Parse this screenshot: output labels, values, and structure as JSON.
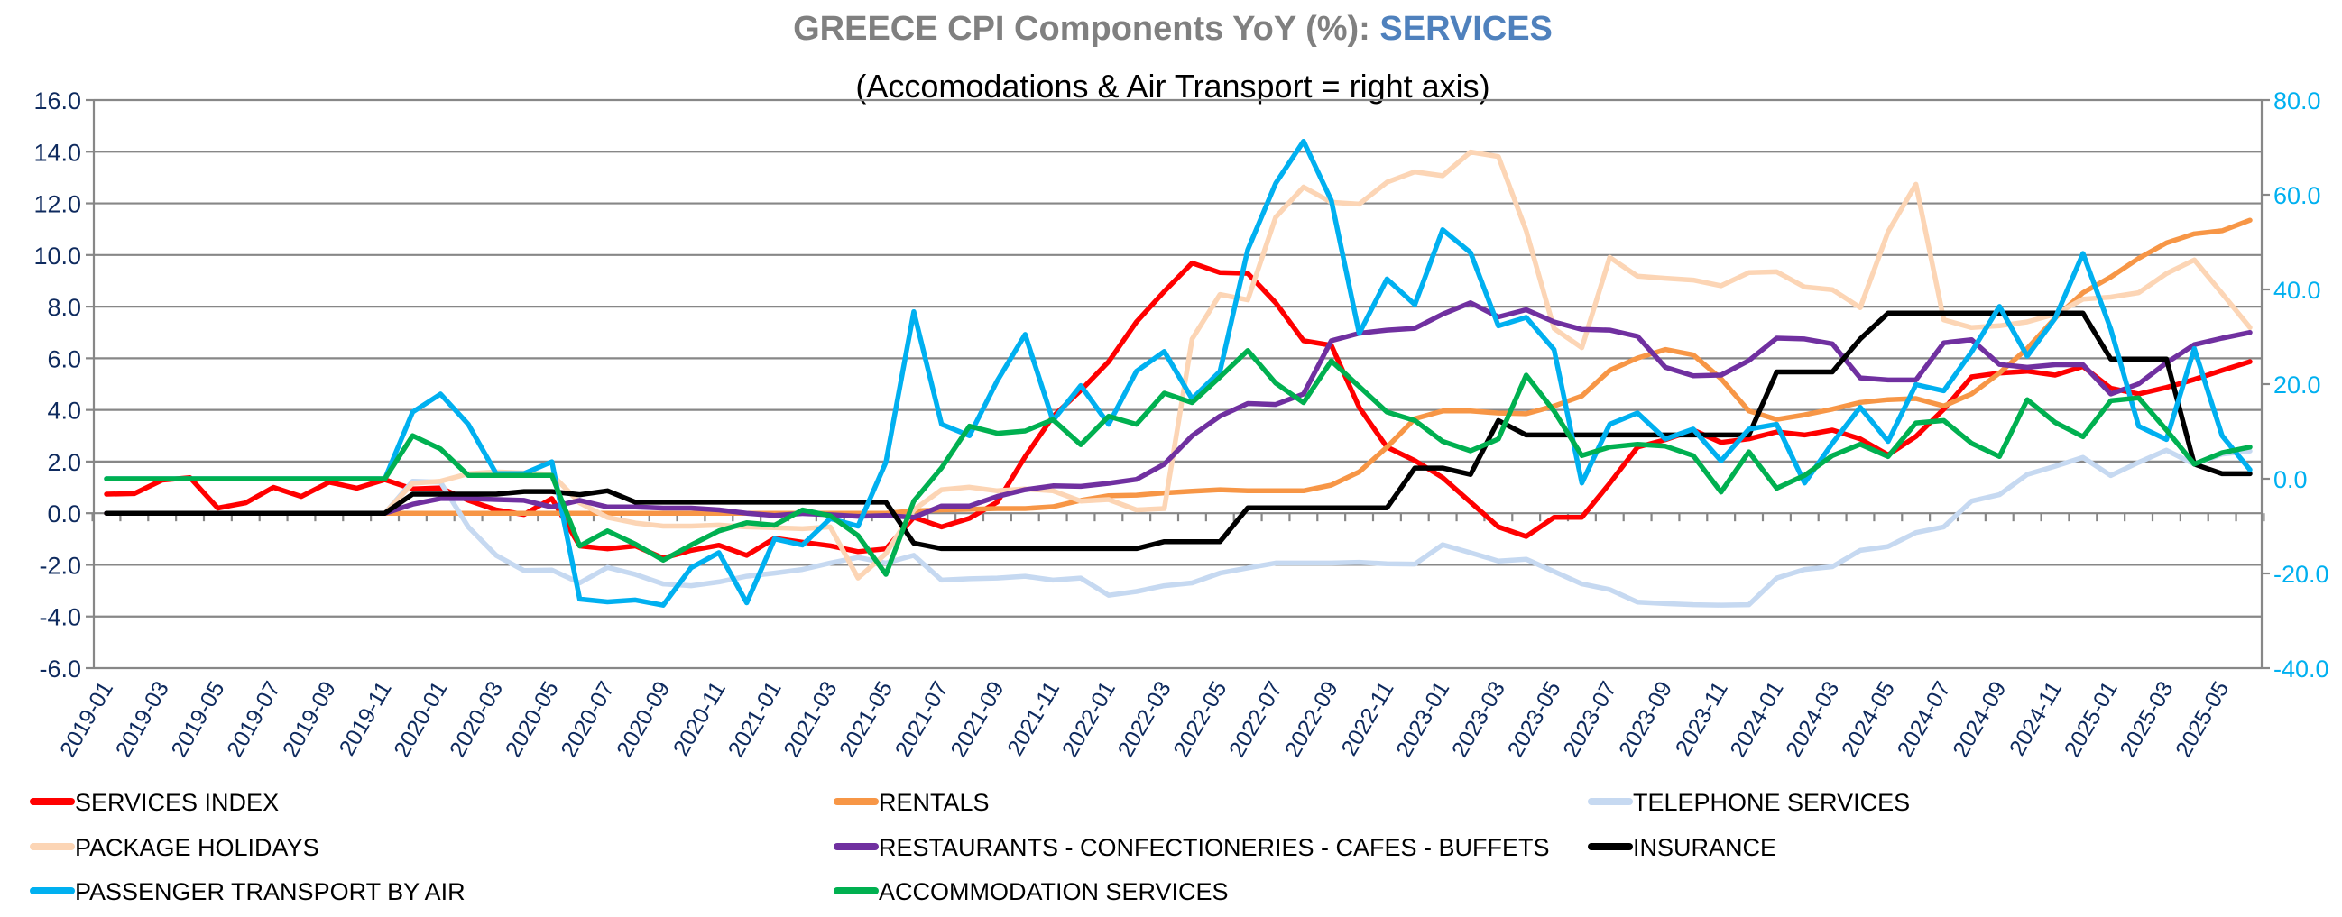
{
  "chart_data": {
    "type": "line",
    "title": "GREECE CPI Components YoY (%): ",
    "title_highlight": "SERVICES",
    "subtitle": "(Accomodations & Air Transport = right axis)",
    "colors": {
      "title": "#808080",
      "title_highlight": "#4F81BD",
      "left_axis": "#0E2A5E",
      "right_axis": "#00B0F0",
      "grid": "#878787"
    },
    "left_axis": {
      "min": -6,
      "max": 16,
      "step": 2,
      "tick_labels": [
        "16.0",
        "14.0",
        "12.0",
        "10.0",
        "8.0",
        "6.0",
        "4.0",
        "2.0",
        "0.0",
        "-2.0",
        "-4.0",
        "-6.0"
      ]
    },
    "right_axis": {
      "min": -40,
      "max": 80,
      "step": 20,
      "tick_labels": [
        "80.0",
        "60.0",
        "40.0",
        "20.0",
        "0.0",
        "-20.0",
        "-40.0"
      ]
    },
    "grid": true,
    "legend_placement": "bottom",
    "x": [
      "2019-01",
      "2019-02",
      "2019-03",
      "2019-04",
      "2019-05",
      "2019-06",
      "2019-07",
      "2019-08",
      "2019-09",
      "2019-10",
      "2019-11",
      "2019-12",
      "2020-01",
      "2020-02",
      "2020-03",
      "2020-04",
      "2020-05",
      "2020-06",
      "2020-07",
      "2020-08",
      "2020-09",
      "2020-10",
      "2020-11",
      "2020-12",
      "2021-01",
      "2021-02",
      "2021-03",
      "2021-04",
      "2021-05",
      "2021-06",
      "2021-07",
      "2021-08",
      "2021-09",
      "2021-10",
      "2021-11",
      "2021-12",
      "2022-01",
      "2022-02",
      "2022-03",
      "2022-04",
      "2022-05",
      "2022-06",
      "2022-07",
      "2022-08",
      "2022-09",
      "2022-10",
      "2022-11",
      "2022-12",
      "2023-01",
      "2023-02",
      "2023-03",
      "2023-04",
      "2023-05",
      "2023-06",
      "2023-07",
      "2023-08",
      "2023-09",
      "2023-10",
      "2023-11",
      "2023-12",
      "2024-01",
      "2024-02",
      "2024-03",
      "2024-04",
      "2024-05",
      "2024-06",
      "2024-07",
      "2024-08",
      "2024-09",
      "2024-10",
      "2024-11",
      "2024-12",
      "2025-01",
      "2025-02",
      "2025-03",
      "2025-04",
      "2025-05",
      "2025-06"
    ],
    "x_tick_labels": [
      "2019-01",
      "2019-03",
      "2019-05",
      "2019-07",
      "2019-09",
      "2019-11",
      "2020-01",
      "2020-03",
      "2020-05",
      "2020-07",
      "2020-09",
      "2020-11",
      "2021-01",
      "2021-03",
      "2021-05",
      "2021-07",
      "2021-09",
      "2021-11",
      "2022-01",
      "2022-03",
      "2022-05",
      "2022-07",
      "2022-09",
      "2022-11",
      "2023-01",
      "2023-03",
      "2023-05",
      "2023-07",
      "2023-09",
      "2023-11",
      "2024-01",
      "2024-03",
      "2024-05",
      "2024-07",
      "2024-09",
      "2024-11",
      "2025-01",
      "2025-03",
      "2025-05"
    ],
    "series": [
      {
        "name": "SERVICES INDEX",
        "color": "#FF0000",
        "axis": "left",
        "values": [
          0.74,
          0.76,
          1.28,
          1.38,
          0.2,
          0.4,
          1.0,
          0.65,
          1.2,
          0.97,
          1.3,
          0.94,
          0.98,
          0.5,
          0.13,
          -0.05,
          0.57,
          -1.27,
          -1.38,
          -1.27,
          -1.74,
          -1.44,
          -1.24,
          -1.63,
          -0.97,
          -1.12,
          -1.26,
          -1.49,
          -1.38,
          -0.16,
          -0.53,
          -0.2,
          0.43,
          2.19,
          3.74,
          4.76,
          5.87,
          7.41,
          8.59,
          9.69,
          9.32,
          9.29,
          8.15,
          6.68,
          6.5,
          4.1,
          2.56,
          2.04,
          1.38,
          0.43,
          -0.53,
          -0.9,
          -0.16,
          -0.16,
          1.16,
          2.56,
          2.85,
          3.22,
          2.74,
          2.88,
          3.15,
          3.03,
          3.22,
          2.88,
          2.26,
          2.97,
          4.03,
          5.28,
          5.43,
          5.5,
          5.35,
          5.68,
          4.84,
          4.62,
          4.87,
          5.18,
          5.53,
          5.87
        ]
      },
      {
        "name": "RENTALS",
        "color": "#F79646",
        "axis": "left",
        "values": [
          0,
          0,
          0,
          0,
          0,
          0,
          0,
          0,
          0,
          0,
          0,
          0,
          0,
          0,
          0,
          0,
          0,
          0,
          0,
          0,
          0,
          0,
          0,
          0,
          0,
          0,
          0,
          0,
          0,
          0.09,
          0.13,
          0.15,
          0.18,
          0.18,
          0.25,
          0.5,
          0.68,
          0.7,
          0.79,
          0.85,
          0.91,
          0.87,
          0.87,
          0.87,
          1.09,
          1.6,
          2.56,
          3.66,
          3.96,
          3.96,
          3.88,
          3.85,
          4.15,
          4.54,
          5.53,
          6.01,
          6.34,
          6.13,
          5.21,
          3.96,
          3.63,
          3.81,
          4.03,
          4.29,
          4.4,
          4.44,
          4.15,
          4.62,
          5.43,
          6.38,
          7.56,
          8.54,
          9.15,
          9.87,
          10.47,
          10.82,
          10.94,
          11.35
        ]
      },
      {
        "name": "TELEPHONE SERVICES",
        "color": "#C6D9F1",
        "axis": "left",
        "values": [
          0,
          0,
          0,
          0,
          0,
          0,
          0,
          0,
          0,
          0,
          0,
          1.24,
          1.2,
          -0.53,
          -1.63,
          -2.22,
          -2.2,
          -2.7,
          -2.1,
          -2.37,
          -2.74,
          -2.81,
          -2.66,
          -2.44,
          -2.32,
          -2.18,
          -1.93,
          -1.71,
          -1.93,
          -1.63,
          -2.59,
          -2.54,
          -2.51,
          -2.44,
          -2.59,
          -2.51,
          -3.18,
          -3.03,
          -2.81,
          -2.7,
          -2.32,
          -2.12,
          -1.93,
          -1.93,
          -1.93,
          -1.9,
          -1.96,
          -1.97,
          -1.22,
          -1.53,
          -1.85,
          -1.78,
          -2.26,
          -2.74,
          -2.96,
          -3.44,
          -3.5,
          -3.54,
          -3.56,
          -3.54,
          -2.51,
          -2.18,
          -2.07,
          -1.44,
          -1.29,
          -0.75,
          -0.53,
          0.47,
          0.72,
          1.5,
          1.82,
          2.16,
          1.46,
          1.97,
          2.44,
          1.9,
          2.29,
          2.41
        ]
      },
      {
        "name": "PACKAGE HOLIDAYS",
        "color": "#FCD5B5",
        "axis": "left",
        "values": [
          0,
          0,
          0,
          0,
          0,
          0,
          0,
          0,
          0,
          0,
          0,
          1.16,
          1.24,
          1.53,
          1.6,
          1.56,
          1.5,
          0.4,
          -0.16,
          -0.38,
          -0.5,
          -0.5,
          -0.46,
          -0.53,
          -0.56,
          -0.6,
          -0.53,
          -2.51,
          -1.56,
          0.13,
          0.91,
          1.01,
          0.87,
          0.94,
          0.87,
          0.47,
          0.53,
          0.13,
          0.18,
          6.75,
          8.47,
          8.26,
          11.46,
          12.63,
          12.04,
          11.97,
          12.82,
          13.22,
          13.07,
          13.99,
          13.81,
          10.94,
          7.15,
          6.41,
          9.91,
          9.18,
          9.1,
          9.03,
          8.81,
          9.32,
          9.35,
          8.76,
          8.66,
          7.96,
          10.9,
          12.74,
          7.49,
          7.19,
          7.26,
          7.41,
          7.71,
          8.29,
          8.37,
          8.54,
          9.28,
          9.81,
          8.51,
          7.19
        ]
      },
      {
        "name": "RESTAURANTS - CONFECTIONERIES - CAFES - BUFFETS",
        "color": "#7030A0",
        "axis": "left",
        "values": [
          0,
          0,
          0,
          0,
          0,
          0,
          0,
          0,
          0,
          0,
          0,
          0.35,
          0.57,
          0.57,
          0.53,
          0.5,
          0.24,
          0.5,
          0.24,
          0.24,
          0.2,
          0.2,
          0.13,
          0,
          -0.09,
          -0.01,
          -0.06,
          -0.12,
          -0.09,
          -0.16,
          0.28,
          0.28,
          0.65,
          0.91,
          1.06,
          1.04,
          1.16,
          1.31,
          1.9,
          3.0,
          3.76,
          4.25,
          4.21,
          4.62,
          6.68,
          6.97,
          7.09,
          7.16,
          7.71,
          8.15,
          7.6,
          7.88,
          7.41,
          7.12,
          7.09,
          6.85,
          5.65,
          5.32,
          5.35,
          5.91,
          6.78,
          6.75,
          6.56,
          5.24,
          5.16,
          5.16,
          6.6,
          6.72,
          5.76,
          5.65,
          5.75,
          5.75,
          4.62,
          5.01,
          5.82,
          6.53,
          6.78,
          7.0
        ]
      },
      {
        "name": "INSURANCE",
        "color": "#000000",
        "axis": "left",
        "values": [
          0,
          0,
          0,
          0,
          0,
          0,
          0,
          0,
          0,
          0,
          0,
          0.74,
          0.74,
          0.74,
          0.74,
          0.84,
          0.84,
          0.72,
          0.87,
          0.43,
          0.43,
          0.43,
          0.43,
          0.43,
          0.43,
          0.43,
          0.43,
          0.43,
          0.43,
          -1.16,
          -1.37,
          -1.37,
          -1.37,
          -1.37,
          -1.37,
          -1.37,
          -1.37,
          -1.37,
          -1.1,
          -1.1,
          -1.1,
          0.21,
          0.21,
          0.21,
          0.21,
          0.21,
          0.21,
          1.75,
          1.75,
          1.5,
          3.59,
          3.03,
          3.03,
          3.03,
          3.03,
          3.03,
          3.03,
          3.03,
          3.03,
          3.03,
          5.47,
          5.47,
          5.47,
          6.75,
          7.75,
          7.75,
          7.75,
          7.75,
          7.75,
          7.75,
          7.75,
          7.75,
          5.97,
          5.97,
          5.97,
          1.9,
          1.53,
          1.53
        ]
      },
      {
        "name": "PASSENGER TRANSPORT BY AIR",
        "color": "#00B0F0",
        "axis": "right",
        "values": [
          0,
          0,
          0,
          0,
          0,
          0,
          0,
          0,
          0,
          0,
          0,
          14.1,
          17.9,
          11.5,
          1.1,
          1.1,
          3.6,
          -25.4,
          -26.0,
          -25.6,
          -26.7,
          -18.8,
          -15.6,
          -26.2,
          -12.7,
          -14.0,
          -8.4,
          -10.0,
          3.5,
          35.3,
          11.5,
          9.1,
          20.7,
          30.5,
          12.3,
          19.7,
          11.5,
          22.7,
          26.9,
          16.9,
          22.7,
          48.4,
          62.4,
          71.3,
          58.8,
          30.7,
          42.2,
          36.8,
          52.6,
          47.8,
          32.3,
          34.1,
          27.3,
          -0.9,
          11.5,
          13.9,
          8.4,
          10.5,
          3.8,
          10.5,
          11.5,
          -0.9,
          7.5,
          15.1,
          7.9,
          19.9,
          18.6,
          26.8,
          36.4,
          25.9,
          33.9,
          47.6,
          31.6,
          11.1,
          8.3,
          27.5,
          9.1,
          1.9
        ]
      },
      {
        "name": "ACCOMMODATION SERVICES",
        "color": "#00B050",
        "axis": "right",
        "values": [
          0,
          0,
          0,
          0,
          0,
          0,
          0,
          0,
          0,
          0,
          0,
          9.1,
          6.3,
          0.7,
          0.7,
          0.7,
          0.7,
          -14.2,
          -11.0,
          -13.8,
          -17.2,
          -14.0,
          -11.0,
          -9.3,
          -9.8,
          -6.6,
          -7.8,
          -12.0,
          -20.2,
          -4.7,
          2.3,
          11.1,
          9.6,
          10.1,
          12.5,
          7.2,
          13.2,
          11.5,
          18.1,
          16.1,
          21.5,
          27.1,
          20.2,
          16.1,
          24.9,
          19.5,
          14.1,
          12.3,
          7.9,
          5.9,
          8.4,
          21.9,
          14.3,
          4.9,
          6.7,
          7.3,
          6.9,
          4.9,
          -2.8,
          5.7,
          -2.0,
          0.7,
          4.9,
          7.3,
          4.7,
          11.8,
          12.3,
          7.5,
          4.7,
          16.7,
          11.9,
          8.9,
          16.5,
          17.1,
          10.3,
          3.1,
          5.5,
          6.7
        ]
      }
    ]
  }
}
